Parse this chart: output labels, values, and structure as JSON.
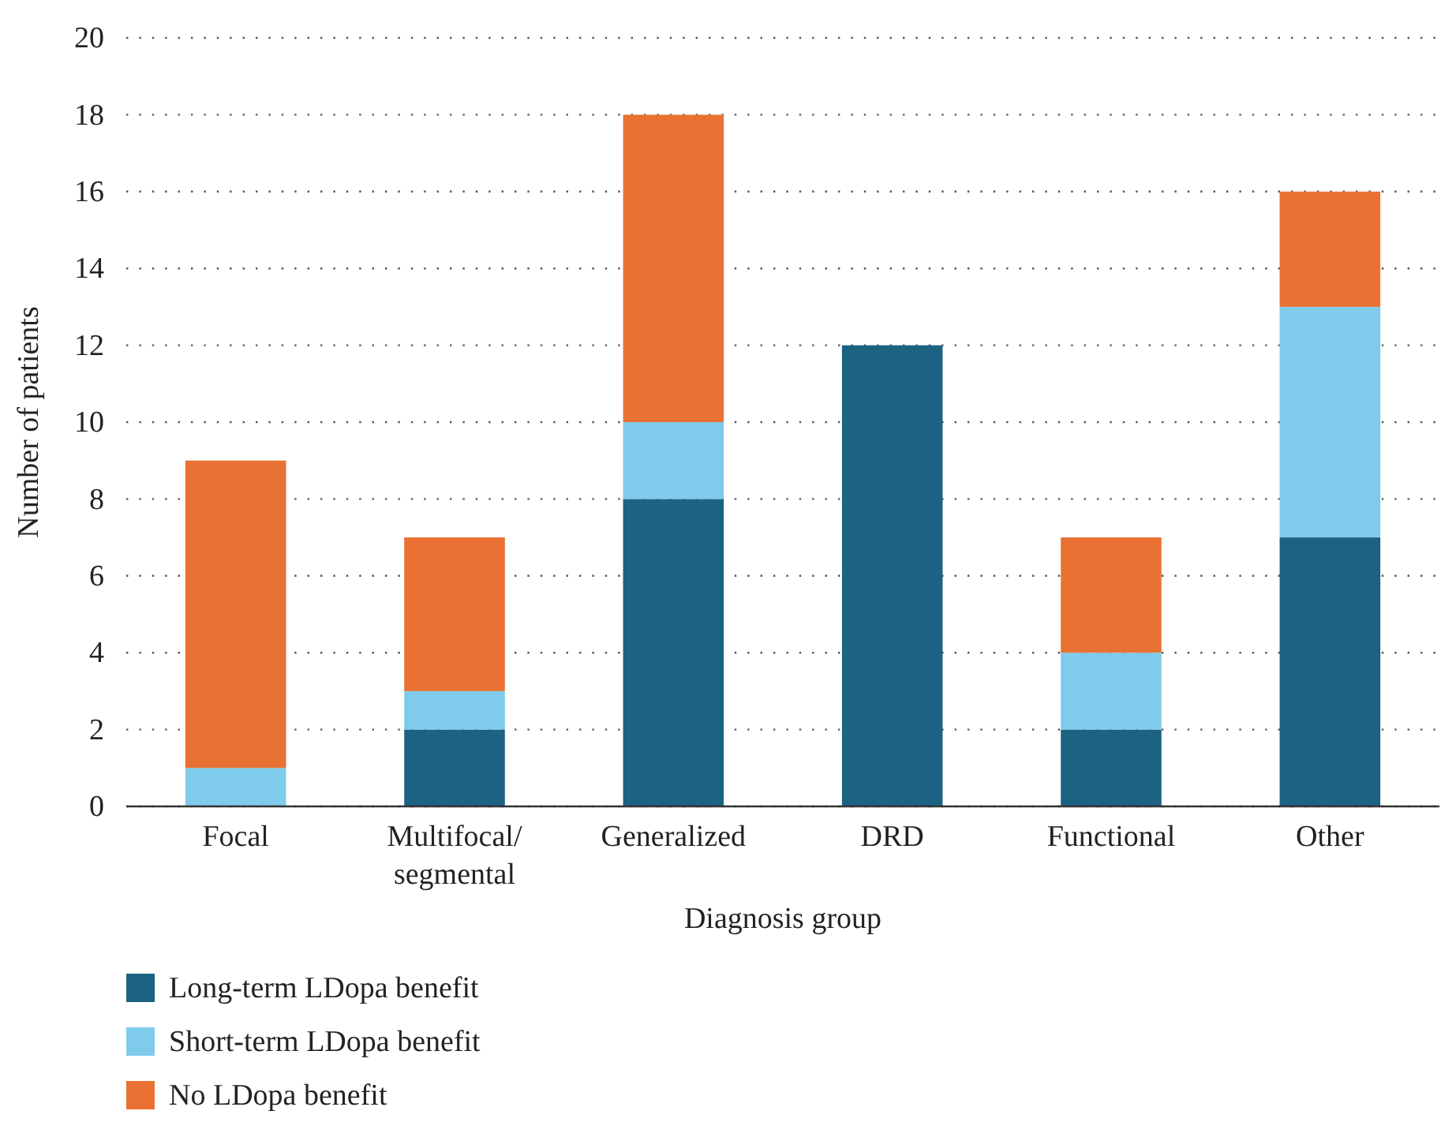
{
  "chart_data": {
    "type": "bar",
    "stacked": true,
    "xlabel": "Diagnosis group",
    "ylabel": "Number of patients",
    "categories": [
      "Focal",
      "Multifocal/segmental",
      "Generalized",
      "DRD",
      "Functional",
      "Other"
    ],
    "series": [
      {
        "name": "Long-term LDopa benefit",
        "color": "#1b6283",
        "values": [
          0,
          2,
          8,
          12,
          2,
          7
        ]
      },
      {
        "name": "Short-term LDopa benefit",
        "color": "#7fcbeb",
        "values": [
          1,
          1,
          2,
          0,
          2,
          6
        ]
      },
      {
        "name": "No LDopa benefit",
        "color": "#e97133",
        "values": [
          8,
          4,
          8,
          0,
          3,
          3
        ]
      }
    ],
    "ylim": [
      0,
      20
    ],
    "yticks": [
      0,
      2,
      4,
      6,
      8,
      10,
      12,
      14,
      16,
      18,
      20
    ],
    "grid": "y",
    "legend": "bottom left"
  }
}
